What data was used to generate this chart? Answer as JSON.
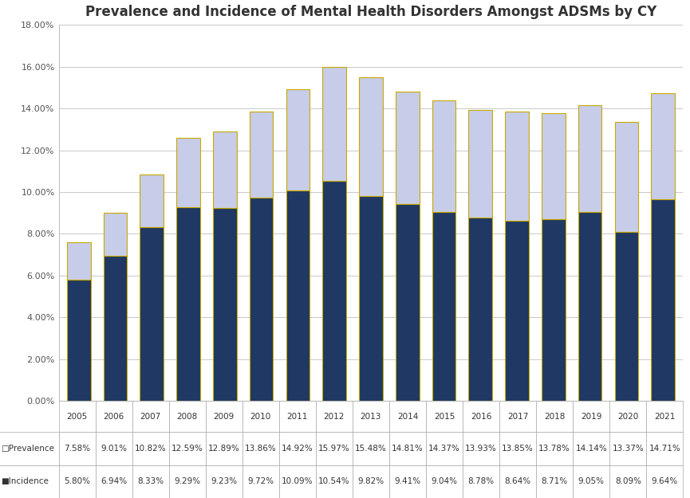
{
  "title": "Prevalence and Incidence of Mental Health Disorders Amongst ADSMs by CY",
  "years": [
    "2005",
    "2006",
    "2007",
    "2008",
    "2009",
    "2010",
    "2011",
    "2012",
    "2013",
    "2014",
    "2015",
    "2016",
    "2017",
    "2018",
    "2019",
    "2020",
    "2021"
  ],
  "prevalence": [
    7.58,
    9.01,
    10.82,
    12.59,
    12.89,
    13.86,
    14.92,
    15.97,
    15.48,
    14.81,
    14.37,
    13.93,
    13.85,
    13.78,
    14.14,
    13.37,
    14.71
  ],
  "incidence": [
    5.8,
    6.94,
    8.33,
    9.29,
    9.23,
    9.72,
    10.09,
    10.54,
    9.82,
    9.41,
    9.04,
    8.78,
    8.64,
    8.71,
    9.05,
    8.09,
    9.64
  ],
  "prevalence_labels": [
    "7.58%",
    "9.01%",
    "10.82%",
    "12.59%",
    "12.89%",
    "13.86%",
    "14.92%",
    "15.97%",
    "15.48%",
    "14.81%",
    "14.37%",
    "13.93%",
    "13.85%",
    "13.78%",
    "14.14%",
    "13.37%",
    "14.71%"
  ],
  "incidence_labels": [
    "5.80%",
    "6.94%",
    "8.33%",
    "9.29%",
    "9.23%",
    "9.72%",
    "10.09%",
    "10.54%",
    "9.82%",
    "9.41%",
    "9.04%",
    "8.78%",
    "8.64%",
    "8.71%",
    "9.05%",
    "8.09%",
    "9.64%"
  ],
  "prevalence_color": "#c7cce8",
  "incidence_color": "#1f3864",
  "bar_edge_color": "#c8aa00",
  "ylim": [
    0,
    18
  ],
  "yticks": [
    0,
    2,
    4,
    6,
    8,
    10,
    12,
    14,
    16,
    18
  ],
  "ytick_labels": [
    "0.00%",
    "2.00%",
    "4.00%",
    "6.00%",
    "8.00%",
    "10.00%",
    "12.00%",
    "14.00%",
    "16.00%",
    "18.00%"
  ],
  "background_color": "#ffffff",
  "grid_color": "#c0c0c0",
  "title_fontsize": 12,
  "tick_fontsize": 8,
  "table_fontsize": 7.5,
  "fig_width": 8.65,
  "fig_height": 6.25
}
